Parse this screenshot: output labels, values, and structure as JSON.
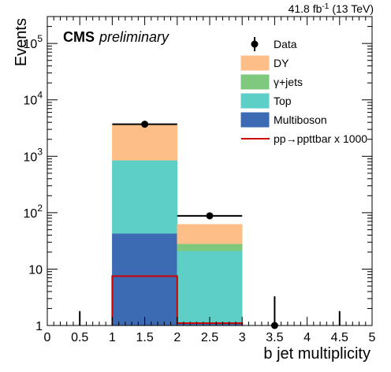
{
  "header": {
    "experiment": "CMS",
    "status": "preliminary",
    "lumi_value": "41.8 fb",
    "lumi_exp": "-1",
    "lumi_energy": "(13 TeV)"
  },
  "chart_data": {
    "type": "bar",
    "stacked": true,
    "xlabel": "b jet multiplicity",
    "ylabel": "Events",
    "ylog": true,
    "xlim": [
      0,
      5
    ],
    "ylim": [
      1,
      300000
    ],
    "bin_edges": [
      1,
      2,
      3
    ],
    "x_ticks": [
      {
        "v": 0,
        "label": "0"
      },
      {
        "v": 0.5,
        "label": "0.5"
      },
      {
        "v": 1,
        "label": "1"
      },
      {
        "v": 1.5,
        "label": "1.5"
      },
      {
        "v": 2,
        "label": "2"
      },
      {
        "v": 2.5,
        "label": "2.5"
      },
      {
        "v": 3,
        "label": "3"
      },
      {
        "v": 3.5,
        "label": "3.5"
      },
      {
        "v": 4,
        "label": "4"
      },
      {
        "v": 4.5,
        "label": "4.5"
      },
      {
        "v": 5,
        "label": "5"
      }
    ],
    "y_ticks": [
      {
        "v": 1,
        "base": "1",
        "exp": ""
      },
      {
        "v": 10,
        "base": "10",
        "exp": ""
      },
      {
        "v": 100,
        "base": "10",
        "exp": "2"
      },
      {
        "v": 1000,
        "base": "10",
        "exp": "3"
      },
      {
        "v": 10000,
        "base": "10",
        "exp": "4"
      },
      {
        "v": 100000,
        "base": "10",
        "exp": "5"
      }
    ],
    "series": [
      {
        "name": "Multiboson",
        "color": "#3d6bb3",
        "values": [
          43,
          1.1
        ]
      },
      {
        "name": "Top",
        "color": "#5ecfc6",
        "values": [
          810,
          20
        ]
      },
      {
        "name": "γ+jets",
        "color": "#7fc97f",
        "values": [
          0,
          7
        ]
      },
      {
        "name": "DY",
        "color": "#fdbf87",
        "values": [
          2700,
          34
        ]
      }
    ],
    "signal": {
      "name": "pp→ppttbar x 1000",
      "color": "#cc0000",
      "values": [
        7.5,
        1.1
      ]
    },
    "data": {
      "name": "Data",
      "points": [
        {
          "x": 0.5,
          "y": 0,
          "err_hi": 1.8
        },
        {
          "x": 1.5,
          "y": 3700,
          "err_hi": 0,
          "xerr": 0.5
        },
        {
          "x": 2.5,
          "y": 88,
          "err_hi": 0,
          "xerr": 0.5
        },
        {
          "x": 3.5,
          "y": 1,
          "err_hi": 3.3
        },
        {
          "x": 4.5,
          "y": 0,
          "err_hi": 1.8
        }
      ]
    },
    "legend": [
      "Data",
      "DY",
      "γ+jets",
      "Top",
      "Multiboson",
      "pp→ppttbar x 1000"
    ],
    "legend_position": "top-right",
    "grid": false
  }
}
